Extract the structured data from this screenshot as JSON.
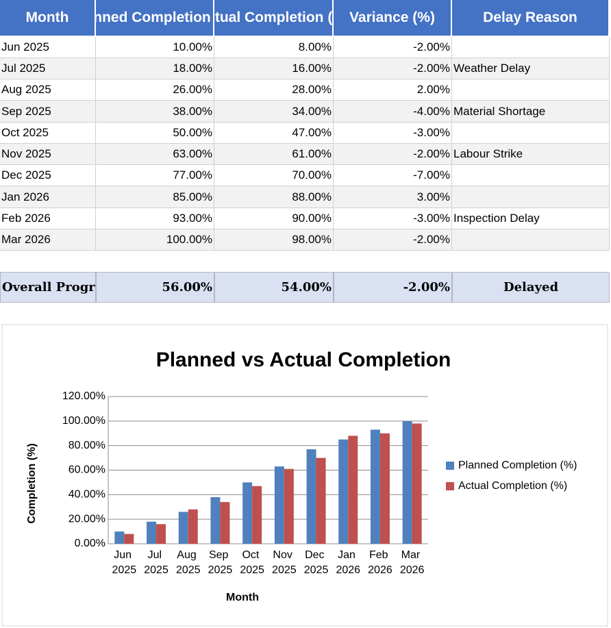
{
  "table": {
    "headers": [
      "Month",
      "Planned Completion (%)",
      "Actual Completion (%)",
      "Variance (%)",
      "Delay Reason"
    ],
    "rows": [
      [
        "Jun 2025",
        "10.00%",
        "8.00%",
        "-2.00%",
        null
      ],
      [
        "Jul 2025",
        "18.00%",
        "16.00%",
        "-2.00%",
        "Weather Delay"
      ],
      [
        "Aug 2025",
        "26.00%",
        "28.00%",
        "2.00%",
        null
      ],
      [
        "Sep 2025",
        "38.00%",
        "34.00%",
        "-4.00%",
        "Material Shortage"
      ],
      [
        "Oct 2025",
        "50.00%",
        "47.00%",
        "-3.00%",
        null
      ],
      [
        "Nov 2025",
        "63.00%",
        "61.00%",
        "-2.00%",
        "Labour Strike"
      ],
      [
        "Dec 2025",
        "77.00%",
        "70.00%",
        "-7.00%",
        null
      ],
      [
        "Jan 2026",
        "85.00%",
        "88.00%",
        "3.00%",
        null
      ],
      [
        "Feb 2026",
        "93.00%",
        "90.00%",
        "-3.00%",
        "Inspection Delay"
      ],
      [
        "Mar 2026",
        "100.00%",
        "98.00%",
        "-2.00%",
        null
      ]
    ],
    "summary": [
      "Overall Progress",
      "56.00%",
      "54.00%",
      "-2.00%",
      "Delayed"
    ]
  },
  "chart_data": {
    "type": "bar",
    "title": "Planned vs Actual Completion",
    "x_label": "Month",
    "y_label": "Completion (%)",
    "categories": [
      "Jun 2025",
      "Jul 2025",
      "Aug 2025",
      "Sep 2025",
      "Oct 2025",
      "Nov 2025",
      "Dec 2025",
      "Jan 2026",
      "Feb 2026",
      "Mar 2026"
    ],
    "series": [
      {
        "name": "Planned Completion (%)",
        "color": "#4f81bd",
        "values": [
          10,
          18,
          26,
          38,
          50,
          63,
          77,
          85,
          93,
          100
        ]
      },
      {
        "name": "Actual Completion (%)",
        "color": "#c0504d",
        "values": [
          8,
          16,
          28,
          34,
          47,
          61,
          70,
          88,
          90,
          98
        ]
      }
    ],
    "ylim": [
      0,
      120
    ],
    "yticks": [
      {
        "value": 0,
        "label": "0.00%"
      },
      {
        "value": 20,
        "label": "20.00%"
      },
      {
        "value": 40,
        "label": "40.00%"
      },
      {
        "value": 60,
        "label": "60.00%"
      },
      {
        "value": 80,
        "label": "80.00%"
      },
      {
        "value": 100,
        "label": "100.00%"
      },
      {
        "value": 120,
        "label": "120.00%"
      }
    ],
    "grid": true,
    "legend": "right"
  }
}
